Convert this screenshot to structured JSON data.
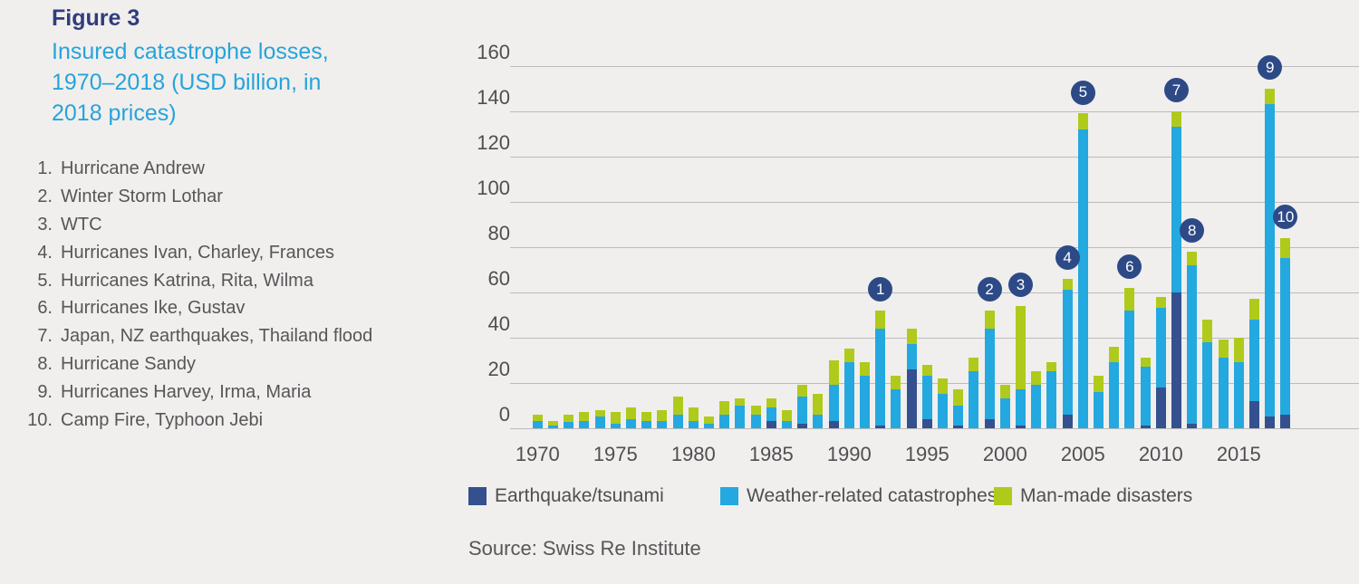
{
  "figure": {
    "label": "Figure 3",
    "title_lines": [
      "Insured catastrophe losses,",
      "1970–2018 (USD billion, in",
      "2018 prices)"
    ]
  },
  "events": [
    {
      "num": "1.",
      "label": "Hurricane Andrew"
    },
    {
      "num": "2.",
      "label": "Winter Storm Lothar"
    },
    {
      "num": "3.",
      "label": "WTC"
    },
    {
      "num": "4.",
      "label": "Hurricanes Ivan, Charley, Frances"
    },
    {
      "num": "5.",
      "label": "Hurricanes Katrina, Rita, Wilma"
    },
    {
      "num": "6.",
      "label": "Hurricanes Ike, Gustav"
    },
    {
      "num": "7.",
      "label": "Japan, NZ earthquakes, Thailand flood"
    },
    {
      "num": "8.",
      "label": "Hurricane Sandy"
    },
    {
      "num": "9.",
      "label": "Hurricanes Harvey, Irma, Maria"
    },
    {
      "num": "10.",
      "label": "Camp Fire, Typhoon Jebi"
    }
  ],
  "source": "Source: Swiss Re Institute",
  "colors": {
    "background": "#f0efed",
    "figure_label": "#313c7e",
    "figure_title": "#27a3db",
    "earthquake": "#35508e",
    "weather": "#24a8e0",
    "manmade": "#b0ca1c",
    "badge": "#2d4a87",
    "gridline": "#bdbcba",
    "axis_text": "#4f4f51"
  },
  "chart_data": {
    "type": "bar",
    "stacked": true,
    "title": "Insured catastrophe losses, 1970–2018 (USD billion, in 2018 prices)",
    "xlabel": "",
    "ylabel": "",
    "ylim": [
      0,
      160
    ],
    "yticks": [
      0,
      20,
      40,
      60,
      80,
      100,
      120,
      140,
      160
    ],
    "xticks": [
      1970,
      1975,
      1980,
      1985,
      1990,
      1995,
      2000,
      2005,
      2010,
      2015
    ],
    "grid": true,
    "legend_position": "bottom",
    "categories": [
      1970,
      1971,
      1972,
      1973,
      1974,
      1975,
      1976,
      1977,
      1978,
      1979,
      1980,
      1981,
      1982,
      1983,
      1984,
      1985,
      1986,
      1987,
      1988,
      1989,
      1990,
      1991,
      1992,
      1993,
      1994,
      1995,
      1996,
      1997,
      1998,
      1999,
      2000,
      2001,
      2002,
      2003,
      2004,
      2005,
      2006,
      2007,
      2008,
      2009,
      2010,
      2011,
      2012,
      2013,
      2014,
      2015,
      2016,
      2017,
      2018
    ],
    "series": [
      {
        "name": "Earthquake/tsunami",
        "color": "#35508e",
        "values": [
          0,
          0,
          0,
          0,
          0,
          0,
          0,
          0,
          0,
          0,
          0,
          0,
          0,
          0,
          0,
          3,
          0,
          2,
          0,
          3,
          0,
          0,
          1,
          0,
          26,
          4,
          0,
          1,
          0,
          4,
          0,
          1,
          0,
          0,
          6,
          0,
          0,
          0,
          0,
          1,
          18,
          60,
          2,
          0,
          0,
          0,
          12,
          5,
          6
        ]
      },
      {
        "name": "Weather-related catastrophes",
        "color": "#24a8e0",
        "values": [
          3,
          1,
          2.5,
          3,
          5,
          2,
          4,
          3,
          3,
          6,
          3,
          2,
          6,
          10,
          6,
          6,
          3,
          12,
          6,
          16,
          29,
          23,
          43,
          17,
          11,
          19,
          15,
          9,
          25,
          40,
          13,
          16,
          19,
          25,
          55,
          132,
          16,
          29,
          52,
          26,
          35,
          73,
          70,
          38,
          31,
          29,
          36,
          138,
          69
        ]
      },
      {
        "name": "Man-made disasters",
        "color": "#b0ca1c",
        "values": [
          3,
          2,
          3.5,
          4,
          3,
          5,
          5,
          4,
          5,
          8,
          6,
          3,
          6,
          3,
          4,
          4,
          5,
          5,
          9,
          11,
          6,
          6,
          8,
          6,
          7,
          5,
          7,
          7,
          6,
          8,
          6,
          37,
          6,
          4,
          5,
          7,
          7,
          7,
          10,
          4,
          5,
          7,
          6,
          10,
          8,
          11,
          9,
          7,
          9
        ]
      }
    ],
    "badges": [
      {
        "n": "1",
        "year": 1992
      },
      {
        "n": "2",
        "year": 1999
      },
      {
        "n": "3",
        "year": 2001
      },
      {
        "n": "4",
        "year": 2004
      },
      {
        "n": "5",
        "year": 2005
      },
      {
        "n": "6",
        "year": 2008
      },
      {
        "n": "7",
        "year": 2011
      },
      {
        "n": "8",
        "year": 2012
      },
      {
        "n": "9",
        "year": 2017
      },
      {
        "n": "10",
        "year": 2018
      }
    ]
  }
}
